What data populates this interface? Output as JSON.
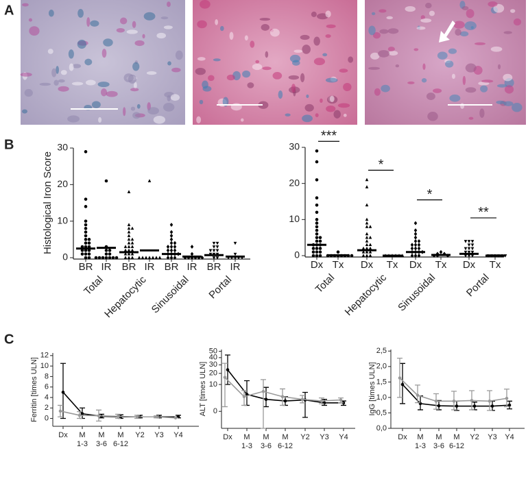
{
  "panel_labels": [
    "A",
    "B",
    "C"
  ],
  "chart_data": [
    {
      "type": "strip",
      "ylabel": "Histological Iron Score",
      "ylim": [
        0,
        30
      ],
      "yticks": [
        0,
        10,
        20,
        30
      ],
      "categories": [
        "BR",
        "IR",
        "BR",
        "IR",
        "BR",
        "IR",
        "BR",
        "IR"
      ],
      "groups": [
        "Total",
        "Hepatocytic",
        "Sinusoidal",
        "Portal"
      ],
      "markers": [
        "circle",
        "circle",
        "triangle",
        "triangle",
        "diamond",
        "diamond",
        "inverted-triangle",
        "inverted-triangle"
      ],
      "points": [
        [
          29,
          16,
          14,
          10,
          9,
          8,
          7,
          6,
          5,
          5,
          4,
          4,
          3,
          3,
          3,
          2,
          2,
          2,
          1,
          1,
          1,
          0,
          0
        ],
        [
          21,
          3,
          2,
          2,
          1,
          1,
          0,
          0,
          0,
          0,
          0,
          0,
          0
        ],
        [
          18,
          9,
          8,
          8,
          7,
          6,
          5,
          5,
          4,
          4,
          3,
          3,
          3,
          2,
          2,
          2,
          1,
          1,
          1,
          0,
          0,
          0
        ],
        [
          21,
          0,
          0,
          0,
          0,
          0,
          0,
          0
        ],
        [
          9,
          7,
          6,
          5,
          4,
          4,
          3,
          3,
          3,
          2,
          2,
          2,
          1,
          1,
          1,
          1,
          0,
          0,
          0
        ],
        [
          3,
          1,
          0,
          0,
          0,
          0,
          0,
          0
        ],
        [
          4,
          4,
          3,
          3,
          2,
          2,
          2,
          1,
          1,
          1,
          0,
          0
        ],
        [
          4,
          1,
          0,
          0,
          0,
          0,
          0
        ]
      ],
      "medians": [
        2.5,
        2.7,
        1.5,
        2,
        1,
        0.3,
        0.7,
        0.3
      ]
    },
    {
      "type": "strip",
      "ylim": [
        0,
        30
      ],
      "yticks": [
        0,
        10,
        20,
        30
      ],
      "categories": [
        "Dx",
        "Tx",
        "Dx",
        "Tx",
        "Dx",
        "Tx",
        "Dx",
        "Tx"
      ],
      "groups": [
        "Total",
        "Hepatocytic",
        "Sinusoidal",
        "Portal"
      ],
      "markers": [
        "circle",
        "circle",
        "triangle",
        "triangle",
        "diamond",
        "diamond",
        "inverted-triangle",
        "inverted-triangle"
      ],
      "points": [
        [
          29,
          26,
          21,
          16,
          14,
          12,
          10,
          9,
          8,
          7,
          6,
          5,
          5,
          4,
          4,
          3,
          3,
          3,
          2,
          2,
          2,
          1,
          1,
          1,
          0,
          0,
          0
        ],
        [
          1,
          0,
          0,
          0,
          0,
          0,
          0,
          0,
          0
        ],
        [
          21,
          19,
          14,
          10,
          9,
          8,
          8,
          6,
          5,
          5,
          4,
          3,
          3,
          2,
          2,
          2,
          1,
          1,
          1,
          0,
          0,
          0
        ],
        [
          0,
          0,
          0,
          0,
          0,
          0
        ],
        [
          9,
          7,
          6,
          5,
          4,
          4,
          3,
          3,
          3,
          2,
          2,
          2,
          1,
          1,
          1,
          1,
          0,
          0,
          0
        ],
        [
          1,
          0.5,
          0.5,
          0,
          0,
          0
        ],
        [
          4,
          4,
          4,
          3,
          3,
          2,
          2,
          2,
          1,
          1,
          1,
          0,
          0,
          0
        ],
        [
          0,
          0,
          0,
          0,
          0,
          0
        ]
      ],
      "medians": [
        3,
        0.1,
        1.5,
        0,
        1,
        0.2,
        0.5,
        0
      ],
      "significance": [
        "***",
        "*",
        "*",
        "**"
      ]
    },
    {
      "type": "line",
      "ylabel": "Ferritin [times ULN]",
      "ylim": [
        -1.5,
        12.5
      ],
      "yticks": [
        0,
        2,
        4,
        6,
        8,
        10,
        12
      ],
      "categories": [
        "Dx",
        "M",
        "M",
        "M",
        "Y2",
        "Y3",
        "Y4"
      ],
      "subcategories": [
        null,
        "1-3",
        "3-6",
        "6-12",
        null,
        null,
        null
      ],
      "series": [
        {
          "color": "#000000",
          "values": [
            5,
            0.9,
            0.4,
            0.3,
            0.3,
            0.3,
            0.3
          ],
          "lower": [
            0,
            0,
            0.1,
            0,
            0.1,
            0.1,
            0.1
          ],
          "upper": [
            10.5,
            2,
            0.8,
            0.7,
            0.6,
            0.6,
            0.6
          ]
        },
        {
          "color": "#999999",
          "values": [
            1.4,
            0.6,
            0.5,
            0.4,
            0.3,
            0.3,
            0.1
          ],
          "lower": [
            0.3,
            0,
            -0.5,
            0,
            0,
            0.1,
            0.1
          ],
          "upper": [
            2.5,
            1.3,
            1.6,
            0.8,
            0.6,
            0.5,
            0.1
          ]
        }
      ]
    },
    {
      "type": "line",
      "ylabel": "ALT [times ULN]",
      "scale": "sqrt",
      "ylim": [
        -4,
        53
      ],
      "yticks": [
        0,
        10,
        20,
        30,
        40,
        50
      ],
      "categories": [
        "Dx",
        "M",
        "M",
        "M",
        "Y2",
        "Y3",
        "Y4"
      ],
      "subcategories": [
        null,
        "1-3",
        "3-6",
        "6-12",
        null,
        null,
        null
      ],
      "series": [
        {
          "color": "#000000",
          "values": [
            24,
            4,
            2,
            1.5,
            1.8,
            1,
            1
          ],
          "lower": [
            10,
            0.5,
            0.3,
            0.5,
            -0.5,
            0.5,
            0.5
          ],
          "upper": [
            44,
            13,
            8,
            3,
            5,
            2,
            1.5
          ]
        },
        {
          "color": "#999999",
          "values": [
            16,
            3,
            5.5,
            3,
            2,
            1.5,
            1.8
          ],
          "lower": [
            0.3,
            0.5,
            -4,
            0.5,
            1,
            0.8,
            1
          ],
          "upper": [
            32,
            6,
            14,
            7,
            3.5,
            2.5,
            2.5
          ]
        }
      ]
    },
    {
      "type": "line",
      "ylabel": "IgG [times ULN]",
      "ylim": [
        0,
        2.55
      ],
      "yticks": [
        {
          "value": 0,
          "label": "0,0"
        },
        {
          "value": 0.5,
          "label": "0,5"
        },
        {
          "value": 1,
          "label": "1,0"
        },
        {
          "value": 1.5,
          "label": "1,5"
        },
        {
          "value": 2,
          "label": "2,0"
        },
        {
          "value": 2.5,
          "label": "2,5"
        }
      ],
      "categories": [
        "Dx",
        "M",
        "M",
        "M",
        "Y2",
        "Y3",
        "Y4"
      ],
      "subcategories": [
        null,
        "1-3",
        "3-6",
        "6-12",
        null,
        null,
        null
      ],
      "series": [
        {
          "color": "#000000",
          "values": [
            1.42,
            0.8,
            0.73,
            0.72,
            0.72,
            0.72,
            0.75
          ],
          "lower": [
            0.8,
            0.6,
            0.6,
            0.58,
            0.6,
            0.58,
            0.63
          ],
          "upper": [
            2.1,
            1.05,
            0.9,
            0.88,
            0.85,
            0.88,
            0.88
          ]
        },
        {
          "color": "#999999",
          "values": [
            1.63,
            1.07,
            0.88,
            0.88,
            0.9,
            0.88,
            0.97
          ],
          "lower": [
            1.0,
            0.83,
            0.62,
            0.6,
            0.6,
            0.58,
            0.7
          ],
          "upper": [
            2.27,
            1.4,
            1.12,
            1.2,
            1.22,
            1.22,
            1.27
          ]
        }
      ]
    }
  ]
}
